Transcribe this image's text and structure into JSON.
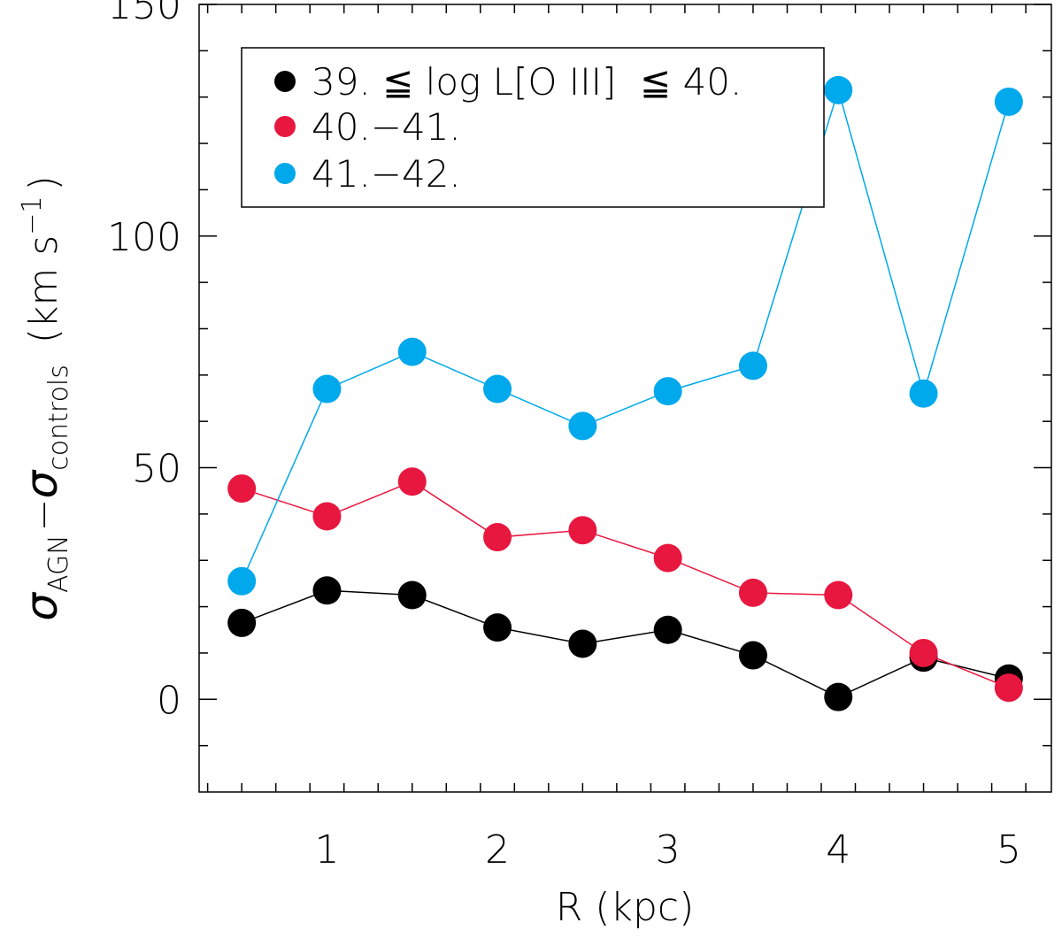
{
  "chart_data": {
    "type": "line",
    "xlabel": "R (kpc)",
    "ylabel": {
      "prefix": "σ",
      "sub1": "AGN",
      "minus": "−",
      "sigma2": "σ",
      "sub2": "controls",
      "units": "(km s",
      "unit_exp": "−1",
      "close": ")"
    },
    "xlim": [
      0.25,
      5.25
    ],
    "ylim": [
      -20,
      150
    ],
    "x_ticks": [
      1,
      2,
      3,
      4,
      5
    ],
    "x_tick_labels": [
      "1",
      "2",
      "3",
      "4",
      "5"
    ],
    "y_ticks": [
      0,
      50,
      100,
      150
    ],
    "y_tick_labels": [
      "0",
      "50",
      "100",
      "150"
    ],
    "x": [
      0.5,
      1.0,
      1.5,
      2.0,
      2.5,
      3.0,
      3.5,
      4.0,
      4.5,
      5.0
    ],
    "series": [
      {
        "name": "39. ≦ log L[O III]  ≦ 40.",
        "color": "#000000",
        "values": [
          16.5,
          23.5,
          22.5,
          15.5,
          12.0,
          15.0,
          9.5,
          0.5,
          9.0,
          4.5
        ]
      },
      {
        "name": "40.−41.",
        "color": "#e8173f",
        "values": [
          45.5,
          39.5,
          47.0,
          35.0,
          36.5,
          30.5,
          23.0,
          22.5,
          10.0,
          2.5
        ]
      },
      {
        "name": "41.−42.",
        "color": "#00a8ec",
        "values": [
          25.5,
          67.0,
          75.0,
          67.0,
          59.0,
          66.5,
          72.0,
          131.5,
          66.0,
          129.0
        ]
      }
    ],
    "legend_position": "top-left",
    "grid": false
  }
}
